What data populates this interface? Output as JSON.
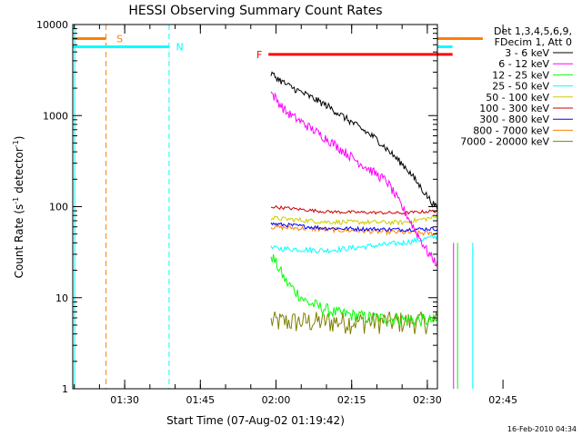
{
  "chart_data": {
    "type": "line",
    "title": "HESSI Observing Summary Count Rates",
    "xlabel": "Start Time (07-Aug-02 01:19:42)",
    "ylabel_parts": [
      "Count Rate (s",
      "-1",
      " detector",
      "-1",
      ")"
    ],
    "footer": "16-Feb-2010 04:34",
    "y_scale": "log",
    "ylim": [
      1,
      10000
    ],
    "xlim_min": [
      19.7,
      92.0
    ],
    "x_tick_labels": [
      "01:30",
      "01:45",
      "02:00",
      "02:15",
      "02:30",
      "02:45"
    ],
    "x_tick_values_min": [
      30,
      45,
      60,
      75,
      90,
      105
    ],
    "y_tick_labels": [
      "1",
      "10",
      "100",
      "1000",
      "10000"
    ],
    "y_tick_values": [
      1,
      10,
      100,
      1000,
      10000
    ],
    "legend_header": [
      "Det 1,3,4,5,6,9,",
      "FDecim 1, Att 0"
    ],
    "series": [
      {
        "name": "3 - 6 keV",
        "color": "#000000"
      },
      {
        "name": "6 - 12 keV",
        "color": "#ff00ff"
      },
      {
        "name": "12 - 25 keV",
        "color": "#00ff00"
      },
      {
        "name": "25 - 50 keV",
        "color": "#00ffff"
      },
      {
        "name": "50 - 100 keV",
        "color": "#cccc00"
      },
      {
        "name": "100 - 300 keV",
        "color": "#cc0000"
      },
      {
        "name": "300 - 800 keV",
        "color": "#0000ff"
      },
      {
        "name": "800 - 7000 keV",
        "color": "#ff8000"
      },
      {
        "name": "7000 - 20000 keV",
        "color": "#808000"
      }
    ],
    "flags": [
      {
        "label": "S",
        "color": "#ff8000"
      },
      {
        "label": "N",
        "color": "#00ffff"
      },
      {
        "label": "F",
        "color": "#ff0000"
      }
    ]
  }
}
